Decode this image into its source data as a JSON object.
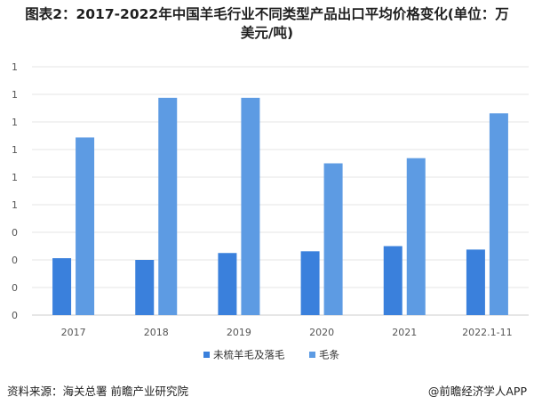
{
  "header": {
    "title_line1": "图表2：2017-2022年中国羊毛行业不同类型产品出口平均价格变化(单位：万",
    "title_line2": "美元/吨)"
  },
  "footer": {
    "source": "资料来源：海关总署 前瞻产业研究院",
    "brand": "@前瞻经济学人APP"
  },
  "colors": {
    "series1": "#3a80dc",
    "series2": "#5d9be3",
    "gridline": "#e6e6e6",
    "axis": "#cccccc"
  },
  "chart_data": {
    "type": "bar",
    "categories": [
      "2017",
      "2018",
      "2019",
      "2020",
      "2021",
      "2022.1-11"
    ],
    "series": [
      {
        "name": "未梳羊毛及落毛",
        "values": [
          0.33,
          0.32,
          0.36,
          0.37,
          0.4,
          0.38
        ]
      },
      {
        "name": "毛条",
        "values": [
          1.03,
          1.26,
          1.26,
          0.88,
          0.91,
          1.17
        ]
      }
    ],
    "y_tick_labels": [
      "0",
      "0",
      "0",
      "0",
      "1",
      "1",
      "1",
      "1",
      "1",
      "1"
    ],
    "ylim": [
      0,
      1.44
    ],
    "grid": true,
    "legend": "bottom"
  }
}
